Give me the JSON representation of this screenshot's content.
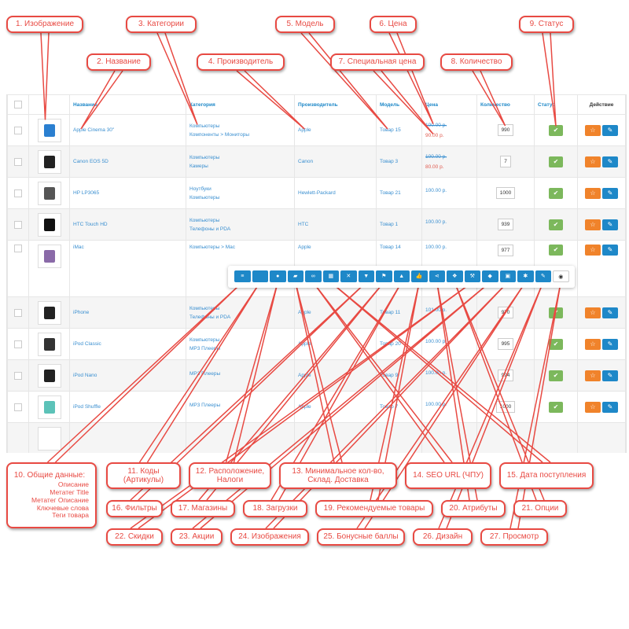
{
  "table": {
    "headers": [
      "",
      "",
      "Название",
      "Категория",
      "Производитель",
      "Модель",
      "Цена",
      "Количество",
      "Статус",
      "Действие"
    ],
    "rows": [
      {
        "name": "Apple Cinema 30\"",
        "cat1": "Компьютеры",
        "cat2": "Компоненты > Мониторы",
        "maker": "Apple",
        "model": "Товар 15",
        "price": "100.00 р.",
        "special": "90.00 р.",
        "qty": "990",
        "img": "#2a7fd0"
      },
      {
        "name": "Canon EOS 5D",
        "cat1": "Компьютеры",
        "cat2": "Камеры",
        "maker": "Canon",
        "model": "Товар 3",
        "price": "100.00 р.",
        "special": "80.00 р.",
        "qty": "7",
        "img": "#222222"
      },
      {
        "name": "HP LP3065",
        "cat1": "Ноутбуки",
        "cat2": "Компьютеры",
        "maker": "Hewlett-Packard",
        "model": "Товар 21",
        "price": "100.00 р.",
        "special": "",
        "qty": "1000",
        "img": "#555555"
      },
      {
        "name": "HTC Touch HD",
        "cat1": "Компьютеры",
        "cat2": "Телефоны и PDA",
        "maker": "HTC",
        "model": "Товар 1",
        "price": "100.00 р.",
        "special": "",
        "qty": "939",
        "img": "#111111"
      },
      {
        "name": "iMac",
        "cat1": "Компьютеры > Mac",
        "cat2": "",
        "maker": "Apple",
        "model": "Товар 14",
        "price": "100.00 р.",
        "special": "",
        "qty": "977",
        "img": "#8a6aa8"
      },
      {
        "name": "iPhone",
        "cat1": "Компьютеры",
        "cat2": "Телефоны и PDA",
        "maker": "Apple",
        "model": "Товар 11",
        "price": "101.00 р.",
        "special": "",
        "qty": "970",
        "img": "#222222"
      },
      {
        "name": "iPod Classic",
        "cat1": "Компьютеры",
        "cat2": "MP3 Плееры",
        "maker": "Apple",
        "model": "Товар 20",
        "price": "100.00 р.",
        "special": "",
        "qty": "995",
        "img": "#333333"
      },
      {
        "name": "iPod Nano",
        "cat1": "MP3 Плееры",
        "cat2": "",
        "maker": "Apple",
        "model": "Товар 9",
        "price": "100.00 р.",
        "special": "",
        "qty": "994",
        "img": "#222222"
      },
      {
        "name": "iPod Shuffle",
        "cat1": "MP3 Плееры",
        "cat2": "",
        "maker": "Apple",
        "model": "Товар 7",
        "price": "100.00 р.",
        "special": "",
        "qty": "1000",
        "img": "#5cc2b8"
      }
    ]
  },
  "toolbar": [
    "list-icon",
    "code-icon",
    "globe-icon",
    "truck-icon",
    "link-icon",
    "calendar-icon",
    "arrows-icon",
    "filter-icon",
    "flag-icon",
    "upload-icon",
    "thumbs-up-icon",
    "share-icon",
    "cubes-icon",
    "gavel-icon",
    "tag-icon",
    "image-icon",
    "puzzle-icon",
    "pencil-icon",
    "eye-icon"
  ],
  "callouts": [
    "1. Изображение",
    "2. Название",
    "3. Категории",
    "4. Производитель",
    "5. Модель",
    "6. Цена",
    "7. Специальная цена",
    "8. Количество",
    "9. Статус",
    "10. Общие данные:",
    "11. Коды (Артикулы)",
    "12. Расположение, Налоги",
    "13. Минимальное кол-во, Склад. Доставка",
    "14. SEO URL (ЧПУ)",
    "15. Дата поступления",
    "16. Фильтры",
    "17. Магазины",
    "18. Загрузки",
    "19. Рекомендуемые товары",
    "20. Атрибуты",
    "21. Опции",
    "22. Скидки",
    "23. Акции",
    "24. Изображения",
    "25. Бонусные баллы",
    "26. Дизайн",
    "27. Просмотр"
  ],
  "general_items": [
    "Описание",
    "Метатег Title",
    "Метатег Описание",
    "Ключевые слова",
    "Теги товара"
  ],
  "colors": {
    "accent": "#1e88c8",
    "orange": "#f0832b",
    "status": "#7cb85c",
    "callout": "#e84a43"
  }
}
